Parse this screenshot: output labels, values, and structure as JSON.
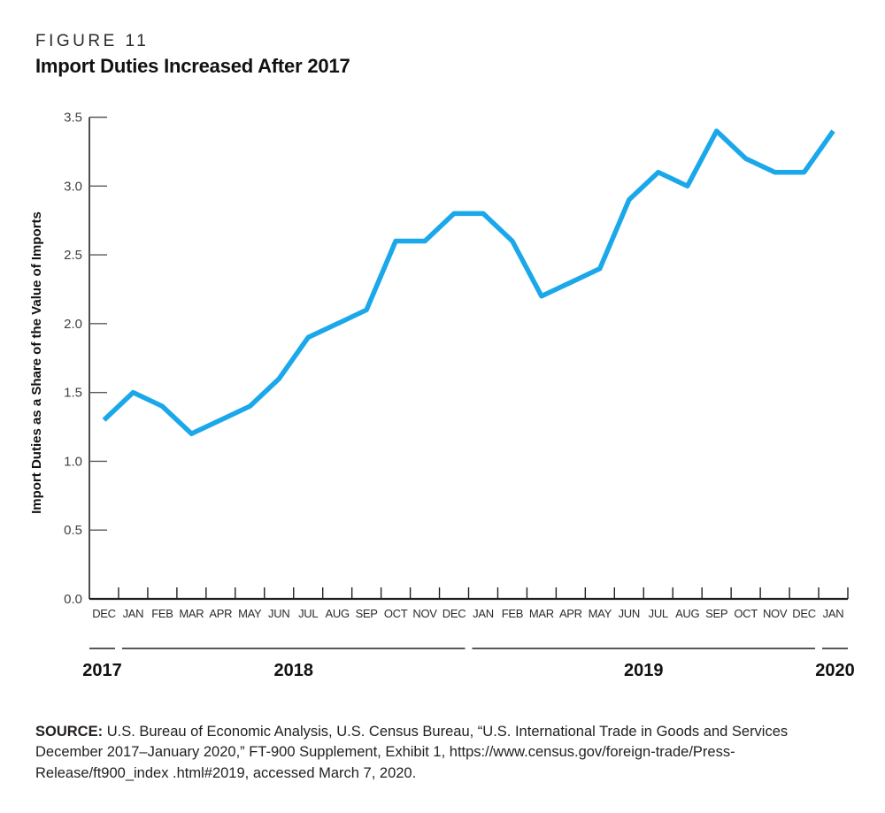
{
  "figure": {
    "label": "FIGURE 11",
    "title": "Import Duties Increased After 2017"
  },
  "chart_data": {
    "type": "line",
    "title": "Import Duties Increased After 2017",
    "x": [
      "DEC",
      "JAN",
      "FEB",
      "MAR",
      "APR",
      "MAY",
      "JUN",
      "JUL",
      "AUG",
      "SEP",
      "OCT",
      "NOV",
      "DEC",
      "JAN",
      "FEB",
      "MAR",
      "APR",
      "MAY",
      "JUN",
      "JUL",
      "AUG",
      "SEP",
      "OCT",
      "NOV",
      "DEC",
      "JAN"
    ],
    "values": [
      1.3,
      1.5,
      1.4,
      1.2,
      1.3,
      1.4,
      1.6,
      1.9,
      2.0,
      2.1,
      2.6,
      2.6,
      2.8,
      2.8,
      2.6,
      2.2,
      2.3,
      2.4,
      2.9,
      3.1,
      3.0,
      3.4,
      3.2,
      3.1,
      3.1,
      3.4
    ],
    "xlabel": "",
    "ylabel": "Import Duties as a Share of the Value of Imports",
    "ylim": [
      0,
      3.5
    ],
    "ytick_step": 0.5,
    "ytick_labels": [
      "0.0",
      "0.5",
      "1.0",
      "1.5",
      "2.0",
      "2.5",
      "3.0",
      "3.5"
    ],
    "grid": false,
    "legend": "none",
    "year_groups": [
      {
        "label": "2017",
        "months": 1
      },
      {
        "label": "2018",
        "months": 12
      },
      {
        "label": "2019",
        "months": 12
      },
      {
        "label": "2020",
        "months": 1
      }
    ],
    "line_color": "#1aa8ea",
    "axis_color": "#231f20",
    "tick_color": "#58595b",
    "text_color": "#2d2a2b"
  },
  "source": {
    "label": "SOURCE:",
    "text": "U.S. Bureau of Economic Analysis, U.S. Census Bureau, “U.S. International Trade in Goods and Services December 2017–January 2020,” FT-900 Supplement, Exhibit 1, https://www.census.gov/foreign-trade/Press-Release/ft900_index .html#2019, accessed March 7, 2020."
  }
}
